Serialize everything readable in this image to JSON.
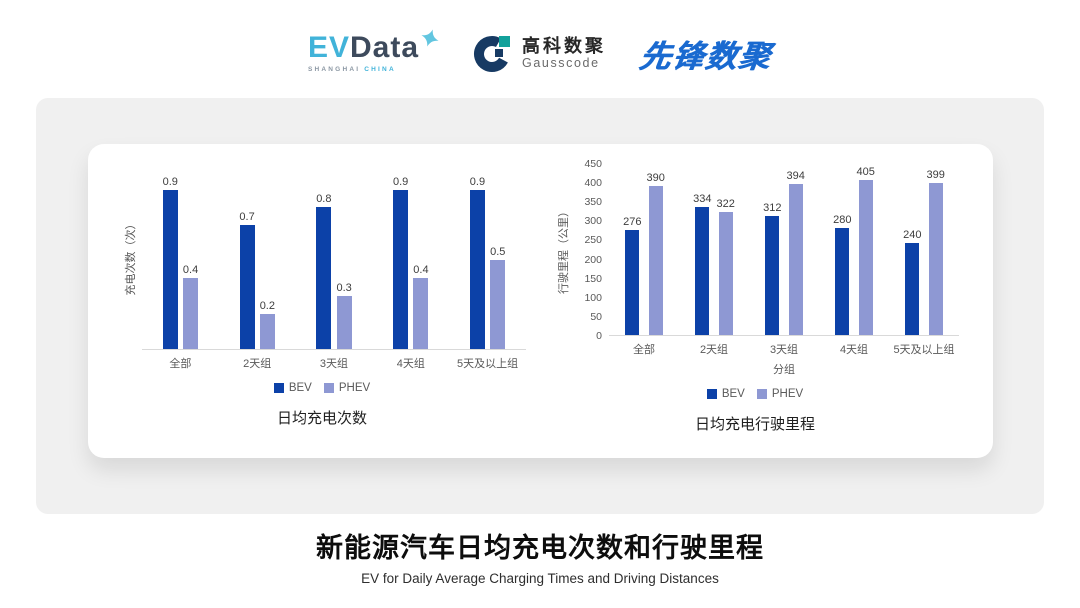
{
  "header": {
    "evdata": {
      "ev": "EV",
      "data": "Data",
      "sub_shanghai": "SHANGHAI",
      "sub_china": "CHINA"
    },
    "gausscode": {
      "cn": "高科数聚",
      "en": "Gausscode"
    },
    "xianfeng": {
      "text": "先锋数聚"
    }
  },
  "chart_data": [
    {
      "type": "bar",
      "title": "日均充电次数",
      "categories": [
        "全部",
        "2天组",
        "3天组",
        "4天组",
        "5天及以上组"
      ],
      "series": [
        {
          "name": "BEV",
          "values": [
            0.9,
            0.7,
            0.8,
            0.9,
            0.9
          ]
        },
        {
          "name": "PHEV",
          "values": [
            0.4,
            0.2,
            0.3,
            0.4,
            0.5
          ]
        }
      ],
      "xlabel": "",
      "ylabel": "充电次数（次）",
      "ylim": [
        0,
        1.05
      ],
      "yticks": [],
      "grid": false,
      "legend": [
        "BEV",
        "PHEV"
      ],
      "legend_position": "bottom",
      "bar_labels": true
    },
    {
      "type": "bar",
      "title": "日均充电行驶里程",
      "categories": [
        "全部",
        "2天组",
        "3天组",
        "4天组",
        "5天及以上组"
      ],
      "series": [
        {
          "name": "BEV",
          "values": [
            276,
            334,
            312,
            280,
            240
          ]
        },
        {
          "name": "PHEV",
          "values": [
            390,
            322,
            394,
            405,
            399
          ]
        }
      ],
      "xlabel": "分组",
      "ylabel": "行驶里程（公里）",
      "ylim": [
        0,
        450
      ],
      "yticks": [
        450,
        400,
        350,
        300,
        250,
        200,
        150,
        100,
        50,
        0
      ],
      "grid": false,
      "legend": [
        "BEV",
        "PHEV"
      ],
      "legend_position": "bottom",
      "bar_labels": true
    }
  ],
  "footer": {
    "title": "新能源汽车日均充电次数和行驶里程",
    "subtitle": "EV for Daily Average Charging Times and Driving Distances"
  },
  "colors": {
    "bev": "#0c41a8",
    "phev": "#8e98d3",
    "panel_bg": "#f0f0f0",
    "card_bg": "#ffffff",
    "baseline": "#d9d9d9",
    "axis_text": "#595959",
    "value_text": "#3d3d3d",
    "evdata_blue": "#41b3d9",
    "evdata_dark": "#3d4a5c",
    "gauss_navy": "#173a63",
    "gauss_teal": "#12a19b",
    "xianfeng_blue": "#1a6ad0"
  }
}
